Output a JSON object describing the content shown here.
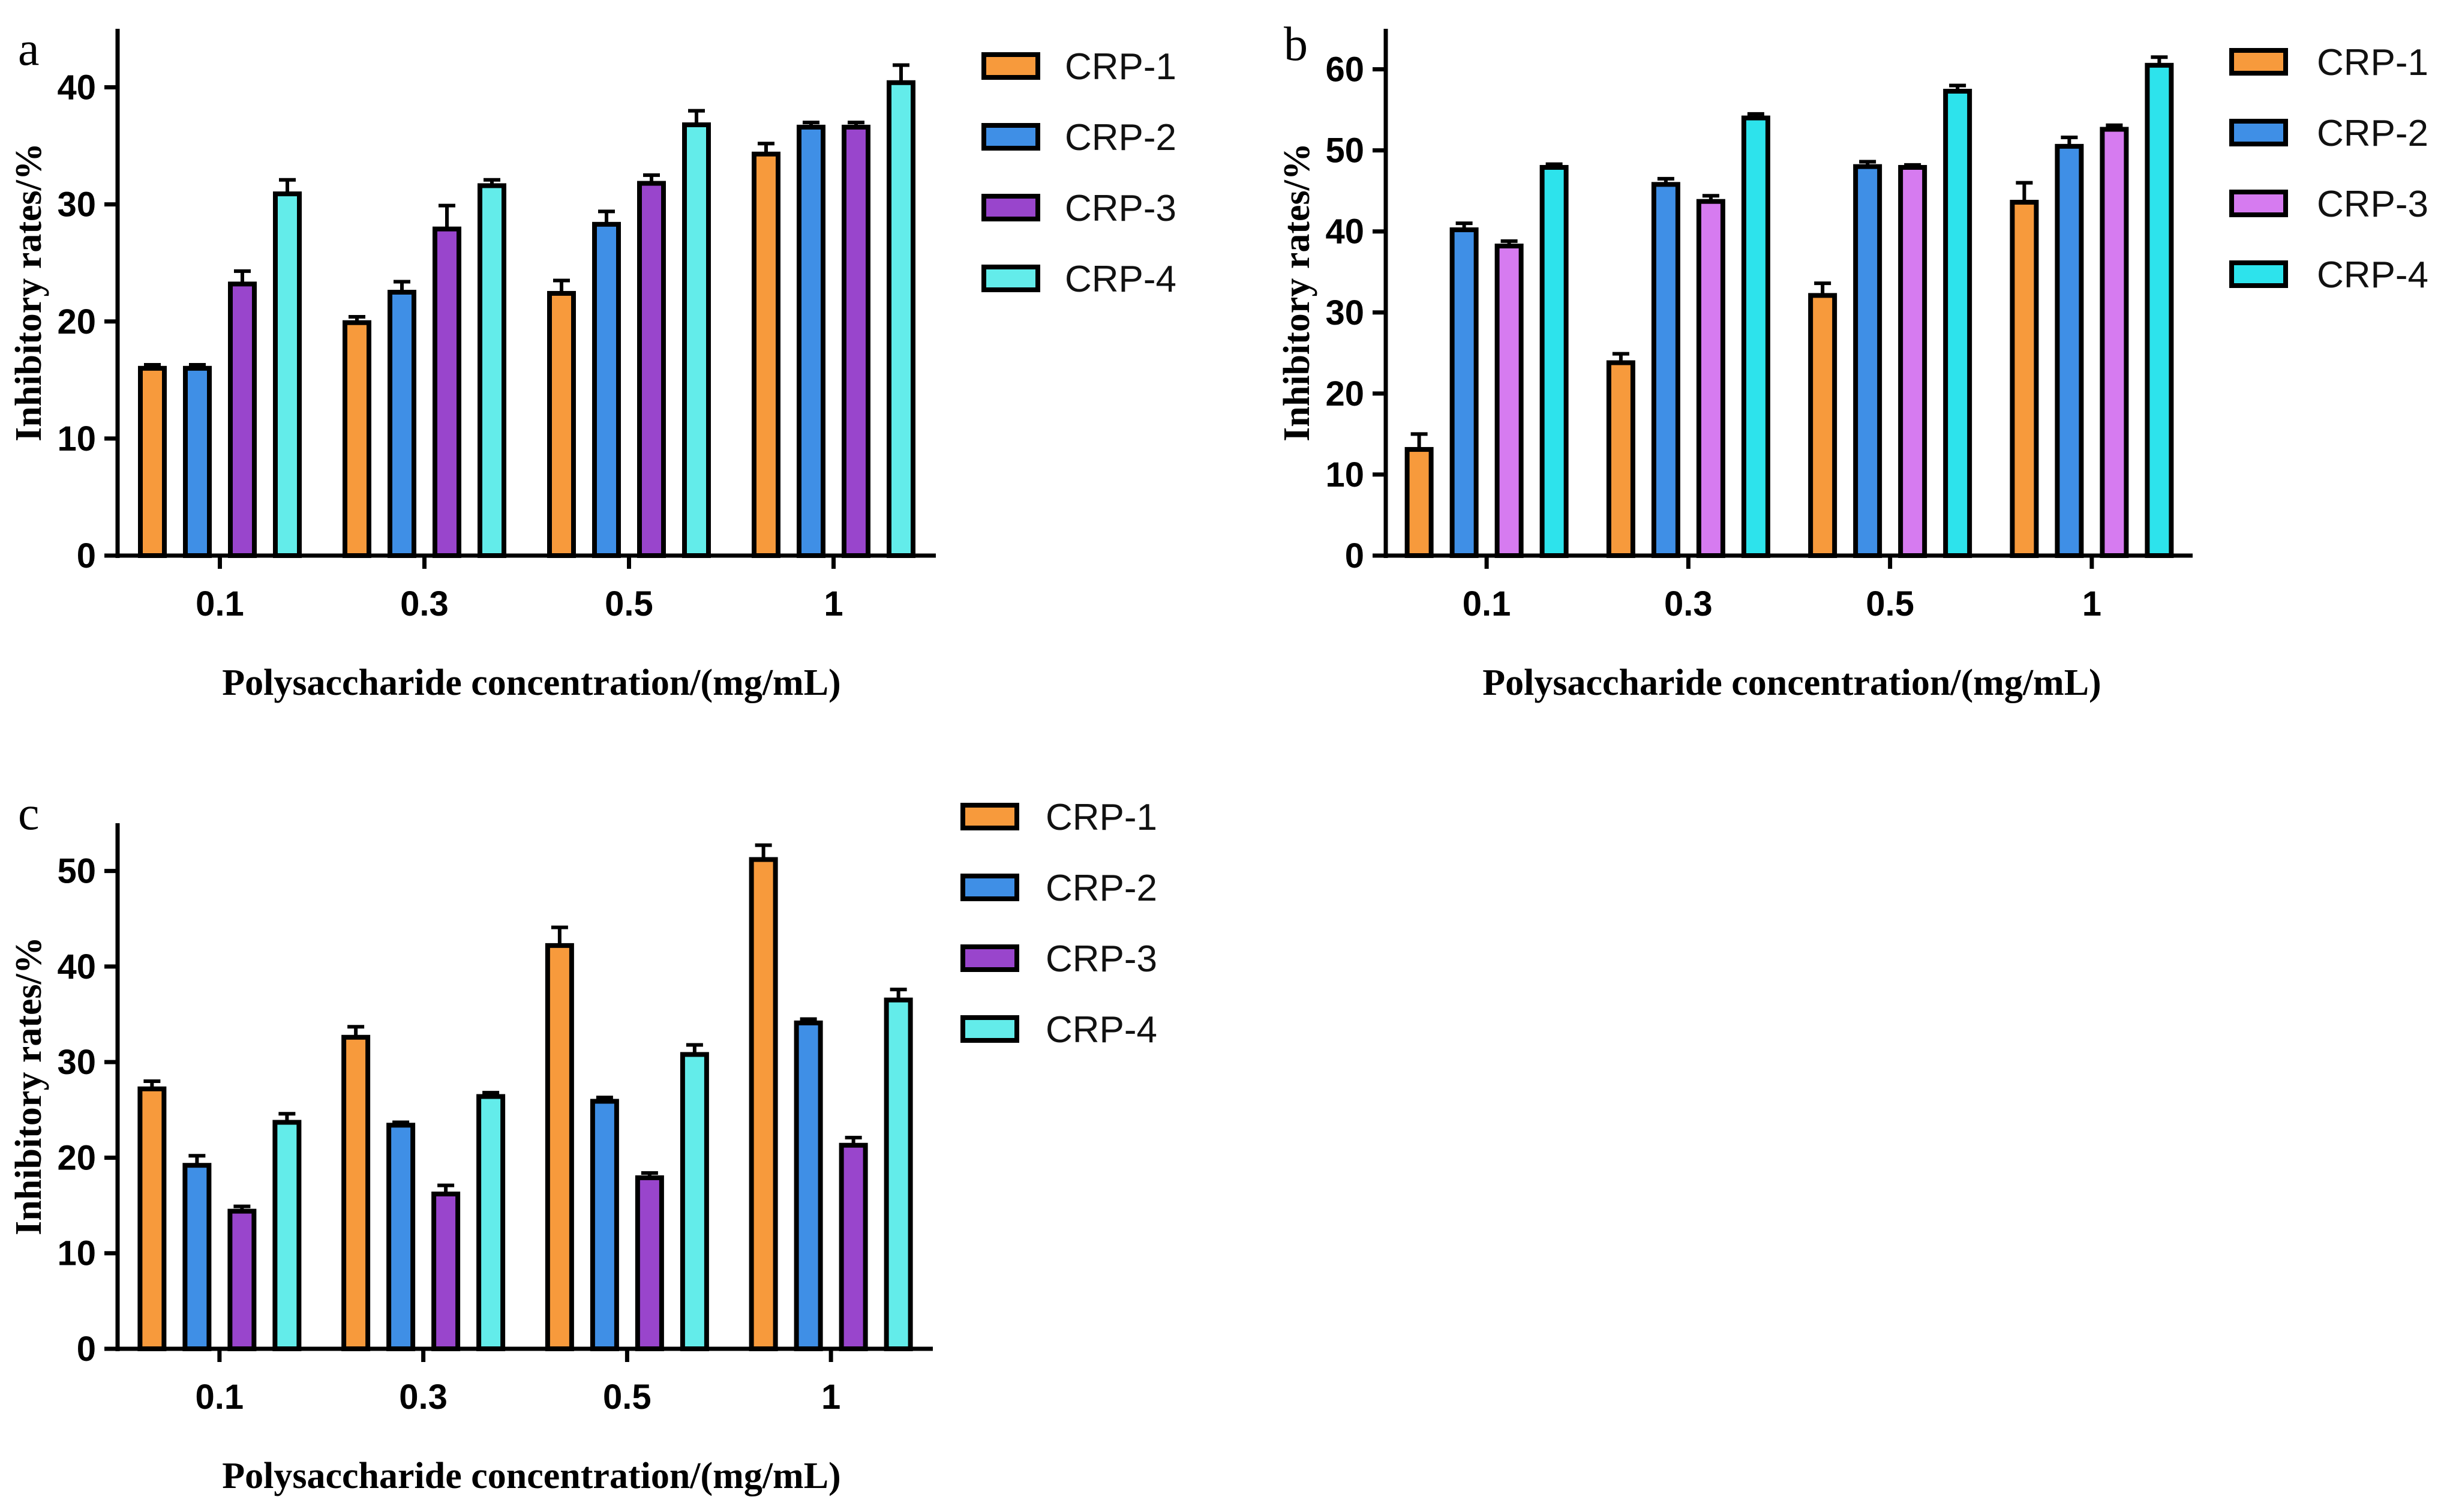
{
  "chart_data": [
    {
      "panel": "a",
      "type": "bar",
      "categories": [
        "0.1",
        "0.3",
        "0.5",
        "1"
      ],
      "xlabel": "Polysaccharide concentration/(mg/mL)",
      "ylabel": "Inhibitory rates/%",
      "ylim": [
        0,
        45
      ],
      "yticks": [
        0,
        10,
        20,
        30,
        40
      ],
      "legend": "right",
      "series": [
        {
          "name": "CRP-1",
          "color": "#F79A3C",
          "values": [
            16.0,
            19.9,
            22.4,
            34.3
          ],
          "errors": [
            0.3,
            0.5,
            1.1,
            0.9
          ]
        },
        {
          "name": "CRP-2",
          "color": "#3F8FE6",
          "values": [
            16.0,
            22.5,
            28.3,
            36.6
          ],
          "errors": [
            0.3,
            0.9,
            1.1,
            0.4
          ]
        },
        {
          "name": "CRP-3",
          "color": "#9945CC",
          "values": [
            23.2,
            27.9,
            31.8,
            36.6
          ],
          "errors": [
            1.1,
            2.0,
            0.7,
            0.4
          ]
        },
        {
          "name": "CRP-4",
          "color": "#63ECEA",
          "values": [
            30.9,
            31.6,
            36.8,
            40.4
          ],
          "errors": [
            1.2,
            0.5,
            1.2,
            1.5
          ]
        }
      ]
    },
    {
      "panel": "b",
      "type": "bar",
      "categories": [
        "0.1",
        "0.3",
        "0.5",
        "1"
      ],
      "xlabel": "Polysaccharide concentration/(mg/mL)",
      "ylabel": "Inhibitory rates/%",
      "ylim": [
        0,
        65
      ],
      "yticks": [
        0,
        10,
        20,
        30,
        40,
        50,
        60
      ],
      "legend": "right",
      "series": [
        {
          "name": "CRP-1",
          "color": "#F79A3C",
          "values": [
            13.1,
            23.8,
            32.1,
            43.6
          ],
          "errors": [
            1.9,
            1.1,
            1.5,
            2.4
          ]
        },
        {
          "name": "CRP-2",
          "color": "#3F8FE6",
          "values": [
            40.2,
            45.8,
            48.0,
            50.5
          ],
          "errors": [
            0.8,
            0.7,
            0.6,
            1.1
          ]
        },
        {
          "name": "CRP-3",
          "color": "#D67BF0",
          "values": [
            38.2,
            43.7,
            47.9,
            52.6
          ],
          "errors": [
            0.6,
            0.7,
            0.3,
            0.5
          ]
        },
        {
          "name": "CRP-4",
          "color": "#2DE3EC",
          "values": [
            47.9,
            54.0,
            57.3,
            60.5
          ],
          "errors": [
            0.4,
            0.5,
            0.7,
            1.0
          ]
        }
      ]
    },
    {
      "panel": "c",
      "type": "bar",
      "categories": [
        "0.1",
        "0.3",
        "0.5",
        "1"
      ],
      "xlabel": "Polysaccharide concentration/(mg/mL)",
      "ylabel": "Inhibitory rates/%",
      "ylim": [
        0,
        55
      ],
      "yticks": [
        0,
        10,
        20,
        30,
        40,
        50
      ],
      "legend": "right",
      "series": [
        {
          "name": "CRP-1",
          "color": "#F79A3C",
          "values": [
            27.2,
            32.6,
            42.2,
            51.2
          ],
          "errors": [
            0.8,
            1.1,
            1.9,
            1.5
          ]
        },
        {
          "name": "CRP-2",
          "color": "#3F8FE6",
          "values": [
            19.2,
            23.4,
            25.9,
            34.1
          ],
          "errors": [
            1.0,
            0.3,
            0.4,
            0.4
          ]
        },
        {
          "name": "CRP-3",
          "color": "#9945CC",
          "values": [
            14.4,
            16.2,
            17.9,
            21.3
          ],
          "errors": [
            0.5,
            0.9,
            0.5,
            0.8
          ]
        },
        {
          "name": "CRP-4",
          "color": "#63ECEA",
          "values": [
            23.7,
            26.4,
            30.8,
            36.5
          ],
          "errors": [
            0.9,
            0.4,
            1.0,
            1.1
          ]
        }
      ]
    }
  ]
}
